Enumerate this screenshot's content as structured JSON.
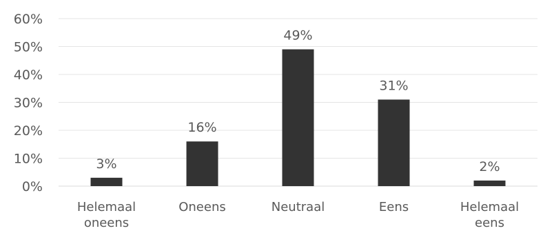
{
  "chart_data": {
    "type": "bar",
    "categories": [
      [
        "Helemaal",
        "oneens"
      ],
      [
        "Oneens"
      ],
      [
        "Neutraal"
      ],
      [
        "Eens"
      ],
      [
        "Helemaal",
        "eens"
      ]
    ],
    "values": [
      3,
      16,
      49,
      31,
      2
    ],
    "data_labels": [
      "3%",
      "16%",
      "49%",
      "31%",
      "2%"
    ],
    "y_ticks": [
      {
        "value": 0,
        "label": "0%"
      },
      {
        "value": 10,
        "label": "10%"
      },
      {
        "value": 20,
        "label": "20%"
      },
      {
        "value": 30,
        "label": "30%"
      },
      {
        "value": 40,
        "label": "40%"
      },
      {
        "value": 50,
        "label": "50%"
      },
      {
        "value": 60,
        "label": "60%"
      }
    ],
    "ylim": [
      0,
      60
    ],
    "grid": true,
    "title": "",
    "xlabel": "",
    "ylabel": "",
    "colors": {
      "bar": "#333333",
      "text": "#595959",
      "grid": "#e4e4e4"
    }
  }
}
